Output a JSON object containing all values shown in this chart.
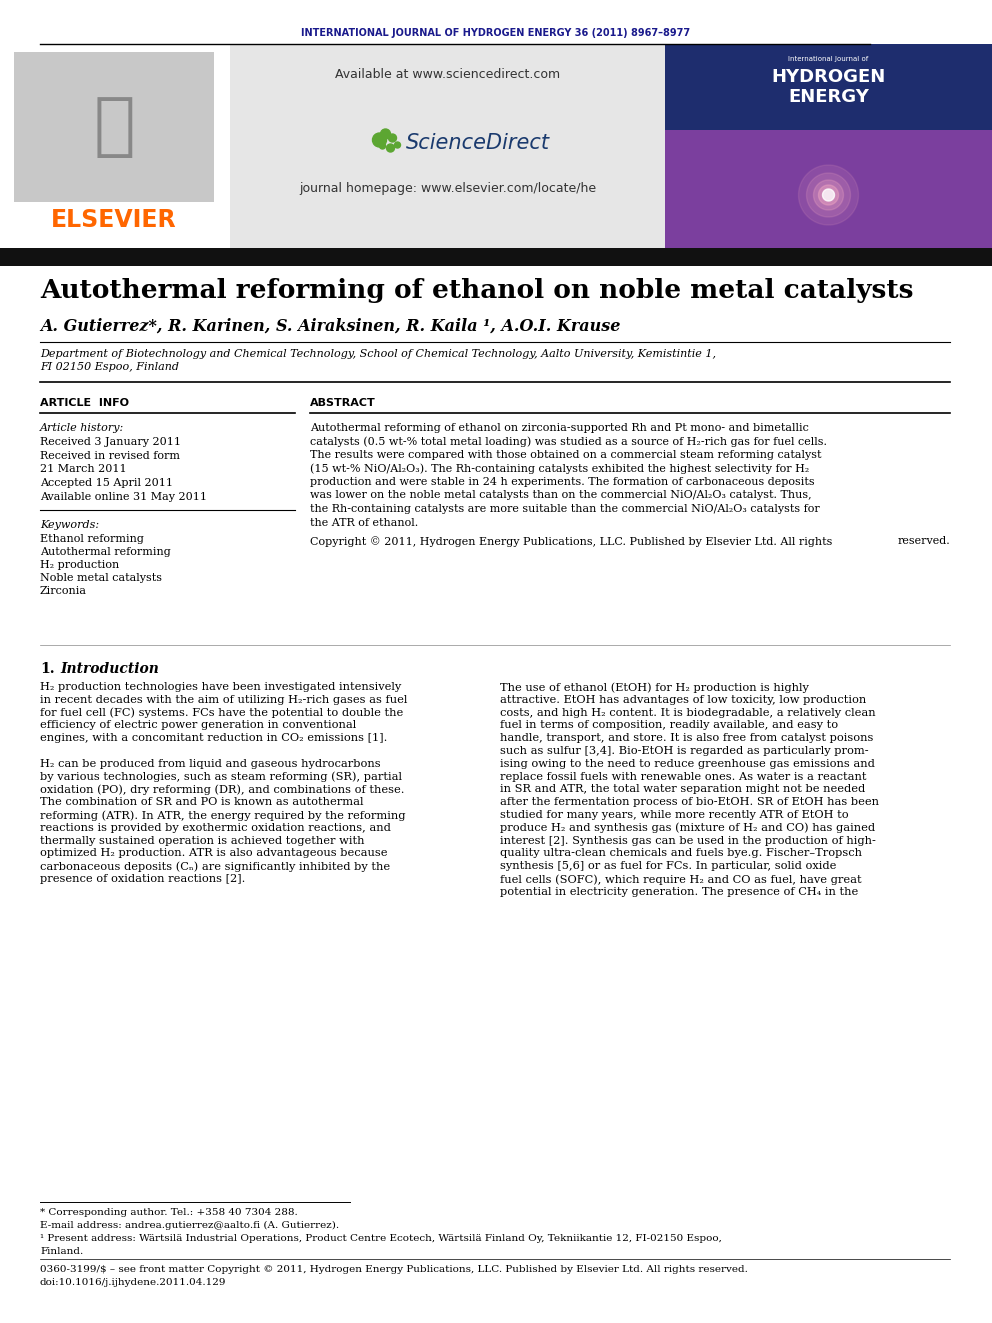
{
  "journal_header": "INTERNATIONAL JOURNAL OF HYDROGEN ENERGY 36 (2011) 8967–8977",
  "journal_header_color": "#1a1a8c",
  "available_text": "Available at www.sciencedirect.com",
  "sd_text": "ScienceDirect",
  "journal_homepage": "journal homepage: www.elsevier.com/locate/he",
  "elsevier_color": "#FF6600",
  "elsevier_text": "ELSEVIER",
  "title": "Autothermal reforming of ethanol on noble metal catalysts",
  "authors": "A. Gutierrez*, R. Karinen, S. Airaksinen, R. Kaila ¹, A.O.I. Krause",
  "affiliation1": "Department of Biotechnology and Chemical Technology, School of Chemical Technology, Aalto University, Kemistintie 1,",
  "affiliation2": "FI 02150 Espoo, Finland",
  "article_info_header": "ARTICLE  INFO",
  "abstract_header": "ABSTRACT",
  "article_history_label": "Article history:",
  "received1": "Received 3 January 2011",
  "received2": "Received in revised form",
  "received2b": "21 March 2011",
  "accepted": "Accepted 15 April 2011",
  "available_online": "Available online 31 May 2011",
  "keywords_label": "Keywords:",
  "keywords": [
    "Ethanol reforming",
    "Autothermal reforming",
    "H₂ production",
    "Noble metal catalysts",
    "Zirconia"
  ],
  "copyright_text": "Copyright © 2011, Hydrogen Energy Publications, LLC. Published by Elsevier Ltd. All rights",
  "copyright_text2": "reserved.",
  "intro_header_num": "1.",
  "intro_header_text": "Introduction",
  "footnote1": "* Corresponding author. Tel.: +358 40 7304 288.",
  "footnote2": "E-mail address: andrea.gutierrez@aalto.fi (A. Gutierrez).",
  "footnote3": "¹ Present address: Wärtsilä Industrial Operations, Product Centre Ecotech, Wärtsilä Finland Oy, Tekniikantie 12, FI-02150 Espoo,",
  "footnote3b": "Finland.",
  "footnote4": "0360-3199/$ – see front matter Copyright © 2011, Hydrogen Energy Publications, LLC. Published by Elsevier Ltd. All rights reserved.",
  "footnote5": "doi:10.1016/j.ijhydene.2011.04.129",
  "bg_color": "#ffffff"
}
